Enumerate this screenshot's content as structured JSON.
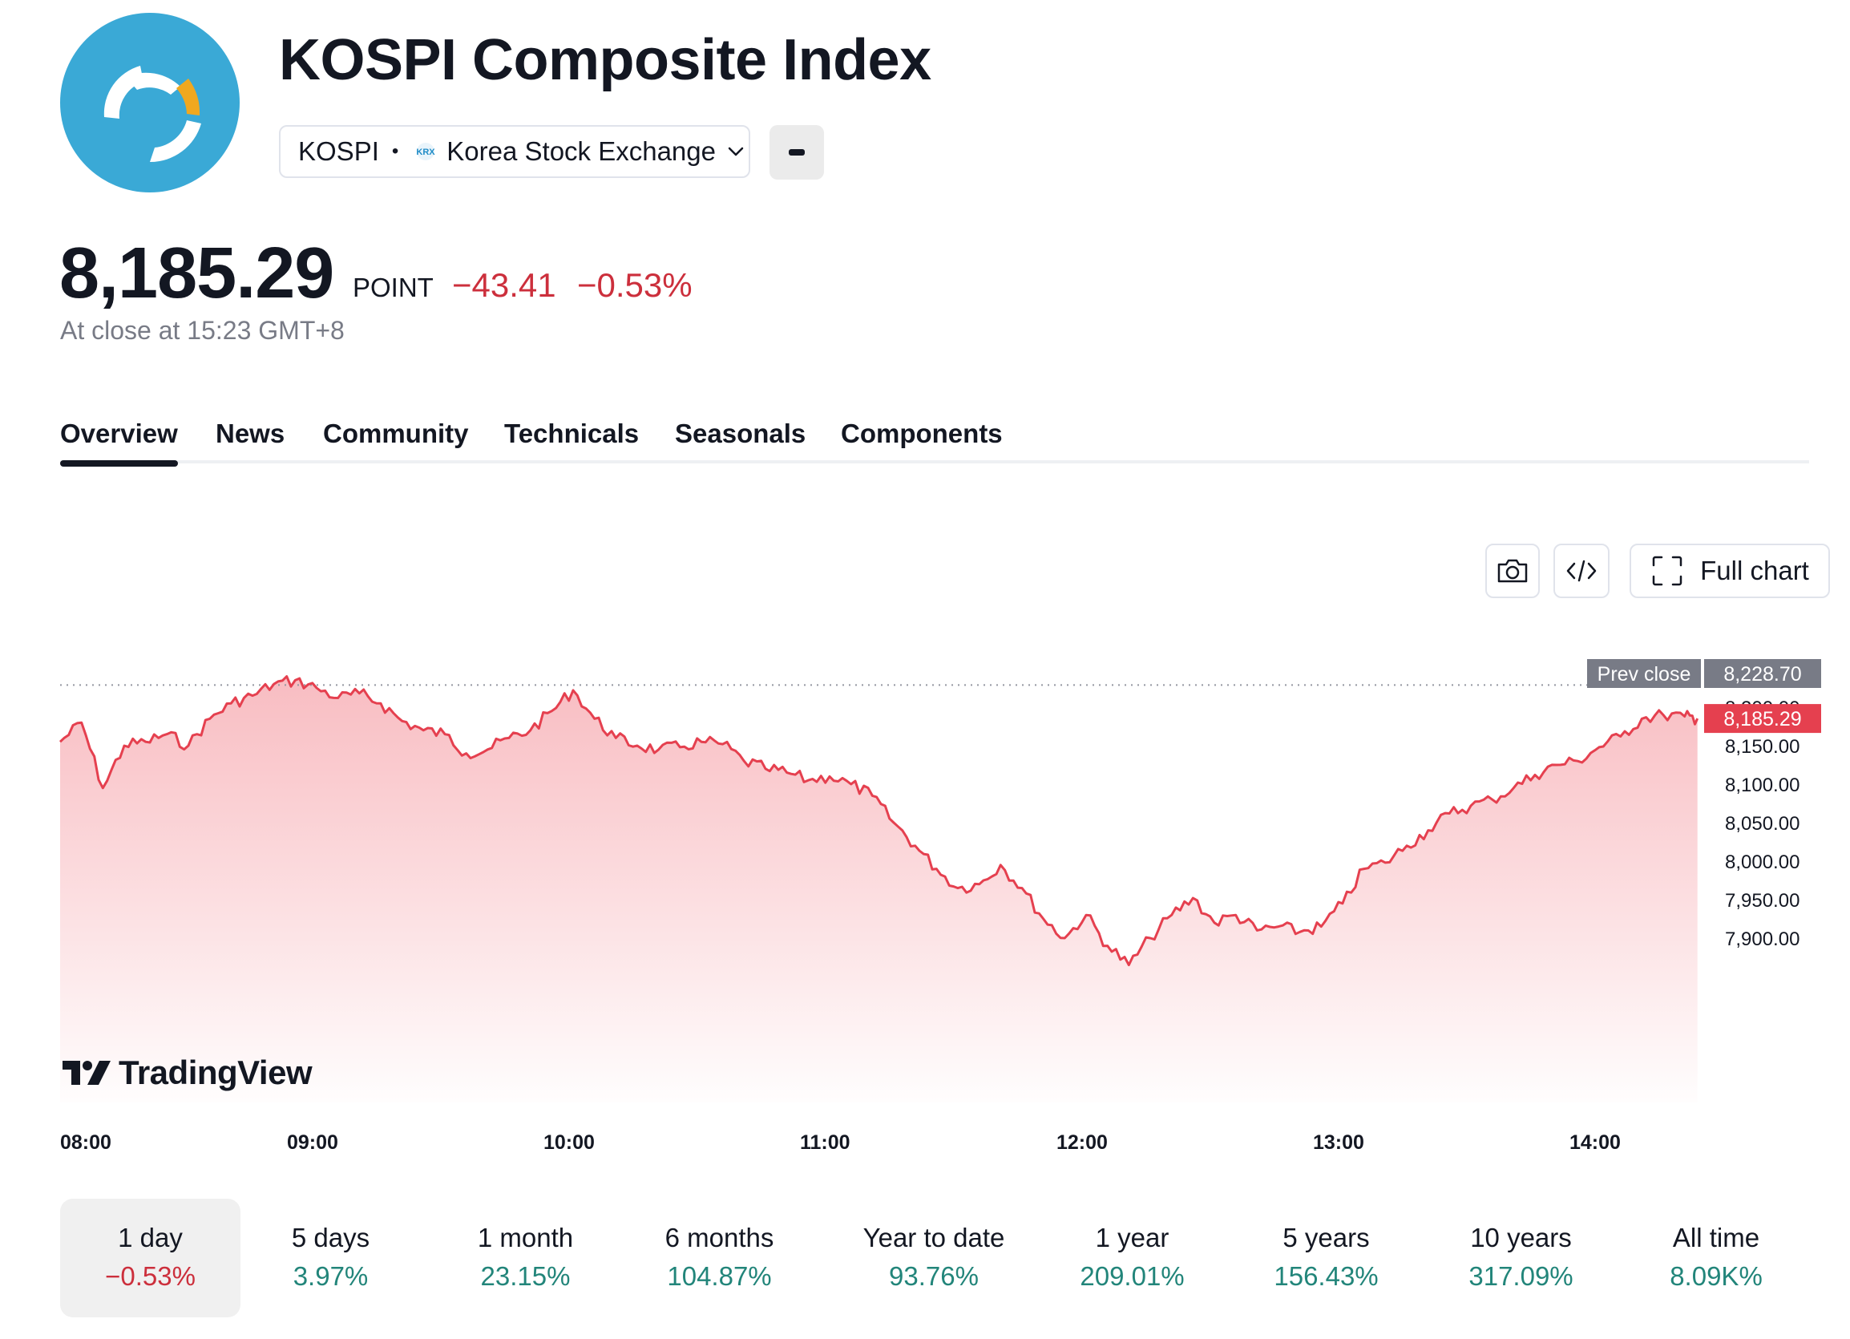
{
  "header": {
    "title": "KOSPI Composite Index",
    "symbol": "KOSPI",
    "exchange": "Korea Stock Exchange",
    "exchange_badge": "KRX"
  },
  "quote": {
    "price": "8,185.29",
    "unit": "POINT",
    "change": "−43.41",
    "change_pct": "−0.53%",
    "status": "At close at 15:23 GMT+8"
  },
  "tabs": [
    {
      "label": "Overview",
      "active": true
    },
    {
      "label": "News"
    },
    {
      "label": "Community"
    },
    {
      "label": "Technicals"
    },
    {
      "label": "Seasonals"
    },
    {
      "label": "Components"
    }
  ],
  "toolbar": {
    "snapshot_icon": "camera-icon",
    "embed_icon": "code-icon",
    "full_chart_label": "Full chart"
  },
  "brand": "TradingView",
  "colors": {
    "down": "#cc2f3c",
    "up": "#22857a",
    "line": "#e5404f",
    "accent": "#3aa9d6"
  },
  "chart_data": {
    "type": "area",
    "x_ticks": [
      "08:00",
      "09:00",
      "10:00",
      "11:00",
      "12:00",
      "13:00",
      "14:00"
    ],
    "y_ticks": [
      "8,200.00",
      "8,150.00",
      "8,100.00",
      "8,050.00",
      "8,000.00",
      "7,950.00",
      "7,900.00"
    ],
    "y_tick_values": [
      8200,
      8150,
      8100,
      8050,
      8000,
      7950,
      7900
    ],
    "prev_close": {
      "label": "Prev close",
      "value": "8,228.70",
      "y": 8228.7
    },
    "last": {
      "value": "8,185.29",
      "y": 8185.29
    },
    "series": [
      {
        "x": [
          "08:00",
          "08:05",
          "08:10",
          "08:15",
          "08:20",
          "08:25",
          "08:30",
          "08:35",
          "08:40",
          "08:45",
          "08:50",
          "08:55",
          "09:00",
          "09:05",
          "09:10",
          "09:15",
          "09:20",
          "09:25",
          "09:30",
          "09:35",
          "09:40",
          "09:45",
          "09:50",
          "09:55",
          "10:00",
          "10:05",
          "10:10",
          "10:15",
          "10:20",
          "10:25",
          "10:30",
          "10:35",
          "10:40",
          "10:45",
          "10:50",
          "10:55",
          "11:00",
          "11:05",
          "11:10",
          "11:15",
          "11:20",
          "11:25",
          "11:30",
          "11:35",
          "11:40",
          "11:45",
          "11:50",
          "11:55",
          "12:00",
          "12:05",
          "12:10",
          "12:15",
          "12:20",
          "12:25",
          "12:30",
          "12:35",
          "12:40",
          "12:45",
          "12:50",
          "12:55",
          "13:00",
          "13:05",
          "13:10",
          "13:15",
          "13:20",
          "13:25",
          "13:30",
          "13:35",
          "13:40",
          "13:45",
          "13:50",
          "13:55",
          "14:00",
          "14:05",
          "14:10",
          "14:15",
          "14:20",
          "14:23"
        ],
        "y": [
          8155,
          8180,
          8095,
          8150,
          8155,
          8165,
          8150,
          8185,
          8205,
          8215,
          8230,
          8235,
          8225,
          8212,
          8218,
          8205,
          8182,
          8170,
          8165,
          8140,
          8145,
          8160,
          8170,
          8195,
          8222,
          8185,
          8160,
          8150,
          8145,
          8148,
          8155,
          8152,
          8130,
          8120,
          8115,
          8105,
          8110,
          8100,
          8085,
          8050,
          8020,
          7990,
          7965,
          7970,
          7995,
          7965,
          7925,
          7900,
          7930,
          7890,
          7865,
          7900,
          7930,
          7952,
          7920,
          7930,
          7910,
          7915,
          7908,
          7915,
          7945,
          7990,
          7998,
          8020,
          8040,
          8062,
          8072,
          8080,
          8095,
          8112,
          8125,
          8130,
          8148,
          8162,
          8185,
          8190,
          8188,
          8185.29
        ]
      }
    ]
  },
  "periods": [
    {
      "label": "1 day",
      "value": "−0.53%",
      "dir": "down",
      "active": true
    },
    {
      "label": "5 days",
      "value": "3.97%",
      "dir": "up"
    },
    {
      "label": "1 month",
      "value": "23.15%",
      "dir": "up"
    },
    {
      "label": "6 months",
      "value": "104.87%",
      "dir": "up"
    },
    {
      "label": "Year to date",
      "value": "93.76%",
      "dir": "up"
    },
    {
      "label": "1 year",
      "value": "209.01%",
      "dir": "up"
    },
    {
      "label": "5 years",
      "value": "156.43%",
      "dir": "up"
    },
    {
      "label": "10 years",
      "value": "317.09%",
      "dir": "up"
    },
    {
      "label": "All time",
      "value": "8.09K%",
      "dir": "up"
    }
  ]
}
